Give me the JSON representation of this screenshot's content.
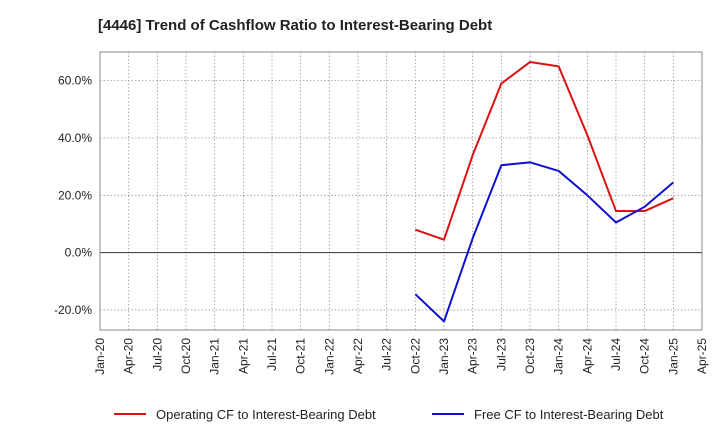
{
  "chart_data": {
    "type": "line",
    "title": "[4446]  Trend of Cashflow Ratio to Interest-Bearing Debt",
    "xlabel": "",
    "ylabel": "",
    "x_ticks": [
      "Jan-20",
      "Apr-20",
      "Jul-20",
      "Oct-20",
      "Jan-21",
      "Apr-21",
      "Jul-21",
      "Oct-21",
      "Jan-22",
      "Apr-22",
      "Jul-22",
      "Oct-22",
      "Jan-23",
      "Apr-23",
      "Jul-23",
      "Oct-23",
      "Jan-24",
      "Apr-24",
      "Jul-24",
      "Oct-24",
      "Jan-25",
      "Apr-25"
    ],
    "y_ticks": [
      -20,
      0,
      20,
      40,
      60
    ],
    "y_tick_labels": [
      "-20.0%",
      "0.0%",
      "20.0%",
      "40.0%",
      "60.0%"
    ],
    "ylim": [
      -27,
      70
    ],
    "grid": true,
    "legend_position": "bottom",
    "series": [
      {
        "name": "Operating CF to Interest-Bearing Debt",
        "color": "#dd1111",
        "x": [
          "Oct-22",
          "Jan-23",
          "Apr-23",
          "Jul-23",
          "Oct-23",
          "Jan-24",
          "Apr-24",
          "Jul-24",
          "Oct-24",
          "Jan-25"
        ],
        "values": [
          8.0,
          4.5,
          34.0,
          59.0,
          66.5,
          65.0,
          41.0,
          14.5,
          14.5,
          19.0
        ]
      },
      {
        "name": "Free CF to Interest-Bearing Debt",
        "color": "#1111cc",
        "x": [
          "Oct-22",
          "Jan-23",
          "Apr-23",
          "Jul-23",
          "Oct-23",
          "Jan-24",
          "Apr-24",
          "Jul-24",
          "Oct-24",
          "Jan-25"
        ],
        "values": [
          -14.5,
          -24.0,
          5.0,
          30.5,
          31.5,
          28.5,
          20.0,
          10.5,
          16.0,
          24.5
        ]
      }
    ]
  }
}
